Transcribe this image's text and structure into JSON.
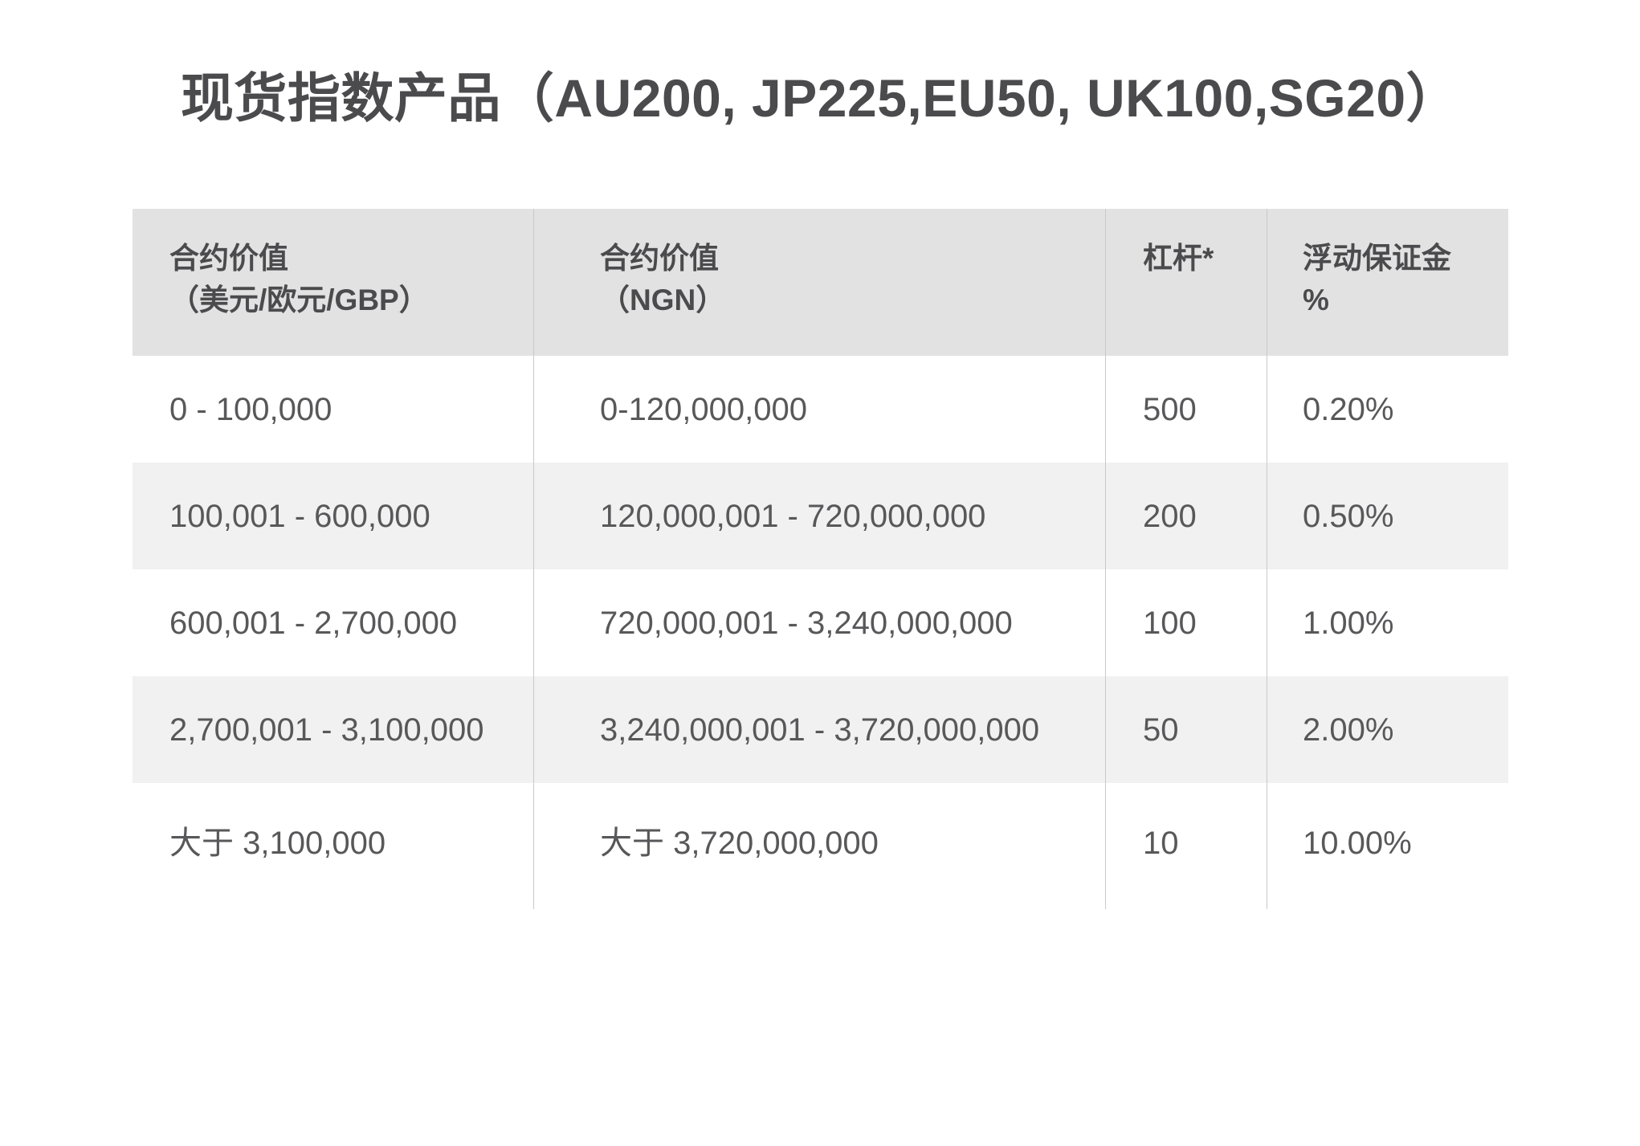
{
  "page": {
    "title": "现货指数产品（AU200, JP225,EU50, UK100,SG20）"
  },
  "colors": {
    "page_background": "#ffffff",
    "header_background": "#e2e2e2",
    "row_stripe_background": "#f1f1f1",
    "divider_line": "#c9c9c9",
    "body_text": "#58585a",
    "heading_text": "#4b4b4d"
  },
  "table": {
    "headers": [
      {
        "line1": "合约价值",
        "line2": "（美元/欧元/GBP）"
      },
      {
        "line1": "合约价值",
        "line2": "（NGN）"
      },
      {
        "line1": "杠杆*",
        "line2": ""
      },
      {
        "line1": "浮动保证金",
        "line2": "%"
      }
    ],
    "rows": [
      [
        "0 - 100,000",
        "0-120,000,000",
        "500",
        "0.20%"
      ],
      [
        "100,001 - 600,000",
        "120,000,001 - 720,000,000",
        "200",
        "0.50%"
      ],
      [
        "600,001 - 2,700,000",
        "720,000,001 - 3,240,000,000",
        "100",
        "1.00%"
      ],
      [
        "2,700,001 - 3,100,000",
        "3,240,000,001 - 3,720,000,000",
        "50",
        "2.00%"
      ],
      [
        "大于 3,100,000",
        "大于 3,720,000,000",
        "10",
        "10.00%"
      ]
    ]
  }
}
